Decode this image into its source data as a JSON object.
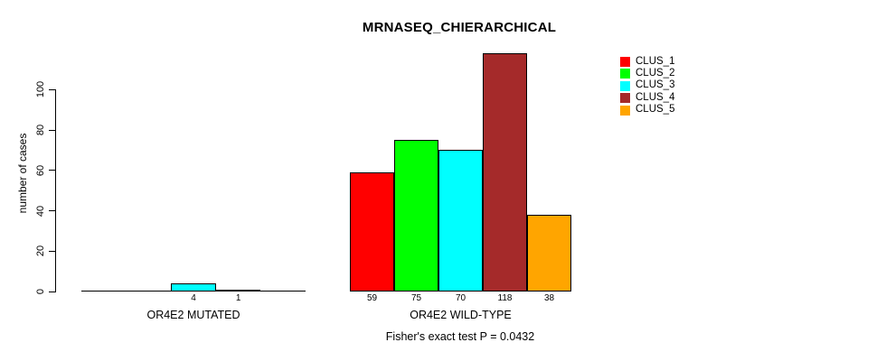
{
  "chart_data": {
    "type": "bar",
    "title": "MRNASEQ_CHIERARCHICAL",
    "ylabel": "number of cases",
    "xlabel": "",
    "categories": [
      "OR4E2 MUTATED",
      "OR4E2 WILD-TYPE"
    ],
    "series": [
      {
        "name": "CLUS_1",
        "color": "#FF0000",
        "values": [
          0,
          59
        ]
      },
      {
        "name": "CLUS_2",
        "color": "#00FF00",
        "values": [
          0,
          75
        ]
      },
      {
        "name": "CLUS_3",
        "color": "#00FFFF",
        "values": [
          4,
          70
        ]
      },
      {
        "name": "CLUS_4",
        "color": "#A52A2A",
        "values": [
          1,
          118
        ]
      },
      {
        "name": "CLUS_5",
        "color": "#FFA500",
        "values": [
          0,
          38
        ]
      }
    ],
    "bar_value_labels": [
      [
        "",
        "",
        "4",
        "1",
        ""
      ],
      [
        "59",
        "75",
        "70",
        "118",
        "38"
      ]
    ],
    "yticks": [
      0,
      20,
      40,
      60,
      80,
      100
    ],
    "ylim": [
      0,
      118
    ],
    "grid": false,
    "legend_position": "right",
    "annotation": "Fisher's exact test P = 0.0432",
    "axis_color": "#000000",
    "background": "#FFFFFF"
  }
}
